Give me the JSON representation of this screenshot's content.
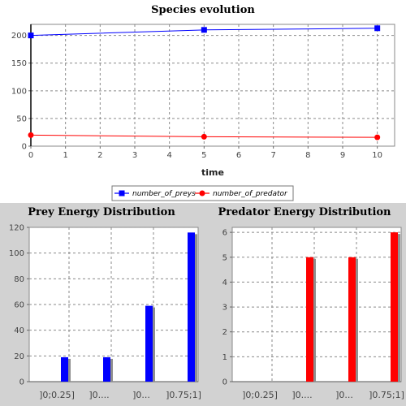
{
  "chart_data": [
    {
      "id": "species",
      "type": "line",
      "title": "Species evolution",
      "xlabel": "time",
      "ylabel": "",
      "xlim": [
        0,
        10.5
      ],
      "ylim": [
        0,
        220
      ],
      "xticks": [
        0,
        1,
        2,
        3,
        4,
        5,
        6,
        7,
        8,
        9,
        10
      ],
      "yticks": [
        0,
        50,
        100,
        150,
        200
      ],
      "grid": true,
      "legend_position": "bottom",
      "series": [
        {
          "name": "number_of_preys",
          "color": "#0000ff",
          "marker": "square",
          "x": [
            0,
            5,
            10
          ],
          "y": [
            200,
            210,
            213
          ]
        },
        {
          "name": "number_of_predator",
          "color": "#ff0000",
          "marker": "circle",
          "x": [
            0,
            5,
            10
          ],
          "y": [
            20,
            17,
            16
          ]
        }
      ]
    },
    {
      "id": "prey",
      "type": "bar",
      "title": "Prey Energy Distribution",
      "categories": [
        "]0;0.25]",
        "]0....",
        "]0...",
        "]0.75;1]"
      ],
      "values": [
        19,
        19,
        59,
        116
      ],
      "color": "#0000ff",
      "ylim": [
        0,
        120
      ],
      "yticks": [
        0,
        20,
        40,
        60,
        80,
        100,
        120
      ],
      "grid": true
    },
    {
      "id": "predator",
      "type": "bar",
      "title": "Predator Energy Distribution",
      "categories": [
        "]0;0.25]",
        "]0....",
        "]0...",
        "]0.75;1]"
      ],
      "values": [
        0,
        5,
        5,
        6
      ],
      "color": "#ff0000",
      "ylim": [
        0,
        6.2
      ],
      "yticks": [
        0,
        1,
        2,
        3,
        4,
        5,
        6
      ],
      "grid": true
    }
  ]
}
